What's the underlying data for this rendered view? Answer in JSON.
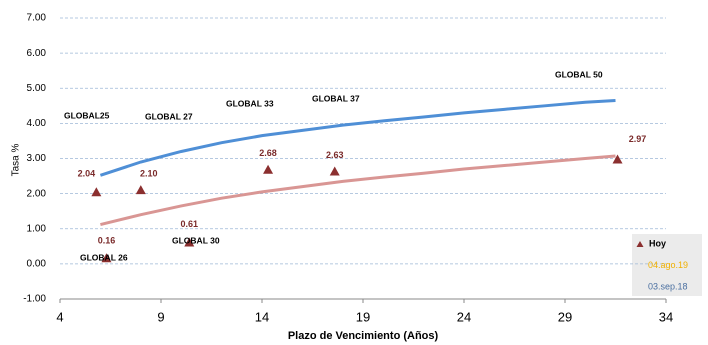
{
  "chart_data": {
    "type": "scatter",
    "xlabel": "Plazo de Vencimiento  (Años)",
    "ylabel": "Tasa %",
    "xlim": [
      4,
      34
    ],
    "xticks": [
      4,
      9,
      14,
      19,
      24,
      29,
      34
    ],
    "ylim": [
      -1,
      7
    ],
    "yticks": [
      {
        "value": -1,
        "label": "-1.00"
      },
      {
        "value": 0,
        "label": "0.00"
      },
      {
        "value": 1,
        "label": "1.00"
      },
      {
        "value": 2,
        "label": "2.00"
      },
      {
        "value": 3,
        "label": "3.00"
      },
      {
        "value": 4,
        "label": "4.00"
      },
      {
        "value": 5,
        "label": "5.00"
      },
      {
        "value": 6,
        "label": "6.00"
      },
      {
        "value": 7,
        "label": "7.00"
      }
    ],
    "grid": true,
    "series": [
      {
        "name": "Hoy",
        "kind": "markers",
        "color": "#8b2f2f",
        "x": [
          5.8,
          6.3,
          8.0,
          10.4,
          14.3,
          17.6,
          31.6
        ],
        "values": [
          2.04,
          0.16,
          2.1,
          0.61,
          2.68,
          2.63,
          2.97
        ],
        "value_labels": [
          "2.04",
          "0.16",
          "2.10",
          "0.61",
          "2.68",
          "2.63",
          "2.97"
        ]
      },
      {
        "name": "04.ago.19",
        "kind": "line",
        "color": "#d99694",
        "legend_color": "#f0b000",
        "x": [
          6,
          8,
          10,
          12,
          14,
          16,
          18,
          20,
          22,
          24,
          26,
          28,
          30,
          31.5
        ],
        "values": [
          1.12,
          1.4,
          1.65,
          1.87,
          2.05,
          2.2,
          2.35,
          2.47,
          2.58,
          2.7,
          2.8,
          2.9,
          3.0,
          3.07
        ]
      },
      {
        "name": "03.sep.18",
        "kind": "line",
        "color": "#4f8fd6",
        "legend_color": "#4a6fa0",
        "x": [
          6,
          8,
          10,
          12,
          14,
          16,
          18,
          20,
          22,
          24,
          26,
          28,
          30,
          31.5
        ],
        "values": [
          2.52,
          2.9,
          3.2,
          3.45,
          3.65,
          3.8,
          3.95,
          4.07,
          4.18,
          4.3,
          4.4,
          4.5,
          4.6,
          4.65
        ]
      }
    ],
    "annotations": [
      "GLOBAL25",
      "GLOBAL 27",
      "GLOBAL 33",
      "GLOBAL 37",
      "GLOBAL 50",
      "GLOBAL 30",
      "GLOBAL 26"
    ]
  }
}
